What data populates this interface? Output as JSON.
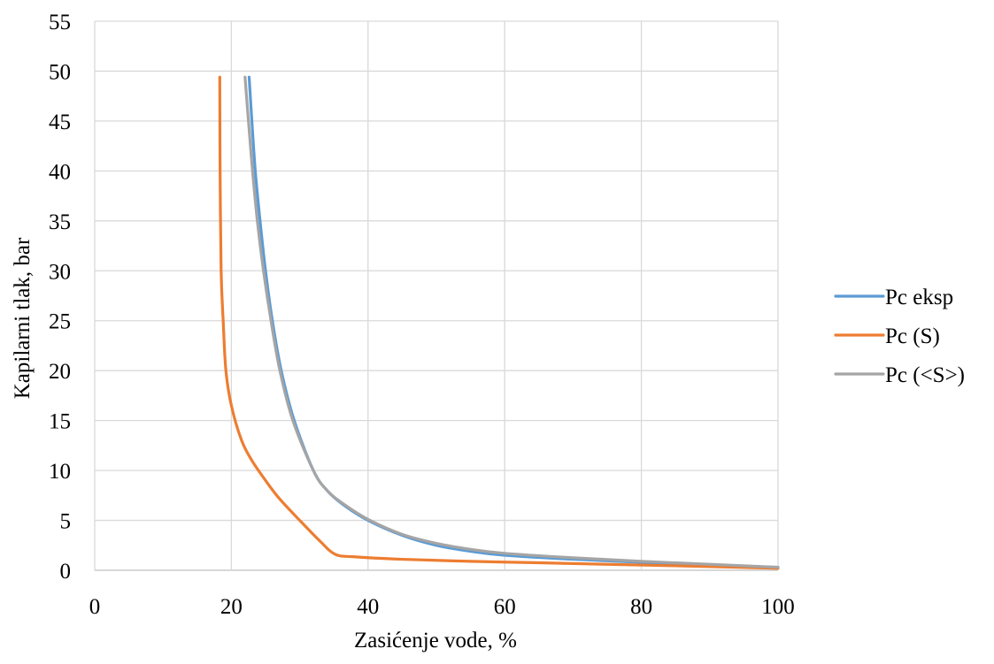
{
  "chart_data": {
    "type": "line",
    "title": "",
    "xlabel": "Zasićenje vode, %",
    "ylabel": "Kapilarni tlak, bar",
    "xlim": [
      0,
      100
    ],
    "ylim": [
      0,
      55
    ],
    "x_ticks": [
      0,
      20,
      40,
      60,
      80,
      100
    ],
    "y_ticks": [
      0,
      5,
      10,
      15,
      20,
      25,
      30,
      35,
      40,
      45,
      50,
      55
    ],
    "grid": true,
    "legend_position": "right",
    "series": [
      {
        "name": "Pc eksp",
        "color": "#5B9BD5",
        "points": [
          [
            22.6,
            49.4
          ],
          [
            23.0,
            45.0
          ],
          [
            23.5,
            40.0
          ],
          [
            24.2,
            35.0
          ],
          [
            25.0,
            30.0
          ],
          [
            26.0,
            25.0
          ],
          [
            27.3,
            20.0
          ],
          [
            29.2,
            15.0
          ],
          [
            32.0,
            10.0
          ],
          [
            34.0,
            8.0
          ],
          [
            36.5,
            6.5
          ],
          [
            40.0,
            5.0
          ],
          [
            45.0,
            3.5
          ],
          [
            50.0,
            2.5
          ],
          [
            55.0,
            1.9
          ],
          [
            60.0,
            1.5
          ],
          [
            70.0,
            1.1
          ],
          [
            80.0,
            0.8
          ],
          [
            90.0,
            0.5
          ],
          [
            100.0,
            0.3
          ]
        ]
      },
      {
        "name": "Pc (S)",
        "color": "#ED7D31",
        "points": [
          [
            18.3,
            49.4
          ],
          [
            18.35,
            40.0
          ],
          [
            18.5,
            30.0
          ],
          [
            18.8,
            25.0
          ],
          [
            19.2,
            20.0
          ],
          [
            20.0,
            16.5
          ],
          [
            21.5,
            13.0
          ],
          [
            23.0,
            11.0
          ],
          [
            25.0,
            9.0
          ],
          [
            27.0,
            7.2
          ],
          [
            30.0,
            5.0
          ],
          [
            33.0,
            2.9
          ],
          [
            35.2,
            1.6
          ],
          [
            38.0,
            1.35
          ],
          [
            45.0,
            1.1
          ],
          [
            55.0,
            0.9
          ],
          [
            65.0,
            0.75
          ],
          [
            75.0,
            0.6
          ],
          [
            85.0,
            0.45
          ],
          [
            100.0,
            0.2
          ]
        ]
      },
      {
        "name": "Pc (<S>)",
        "color": "#A5A5A5",
        "points": [
          [
            22.0,
            49.4
          ],
          [
            22.5,
            45.0
          ],
          [
            23.1,
            40.0
          ],
          [
            23.8,
            35.0
          ],
          [
            24.7,
            30.0
          ],
          [
            25.8,
            25.0
          ],
          [
            27.1,
            20.0
          ],
          [
            29.0,
            15.0
          ],
          [
            32.0,
            10.0
          ],
          [
            34.0,
            8.0
          ],
          [
            36.5,
            6.6
          ],
          [
            40.0,
            5.1
          ],
          [
            45.0,
            3.6
          ],
          [
            50.0,
            2.7
          ],
          [
            55.0,
            2.1
          ],
          [
            60.0,
            1.7
          ],
          [
            70.0,
            1.25
          ],
          [
            80.0,
            0.9
          ],
          [
            90.0,
            0.6
          ],
          [
            100.0,
            0.3
          ]
        ]
      }
    ]
  }
}
